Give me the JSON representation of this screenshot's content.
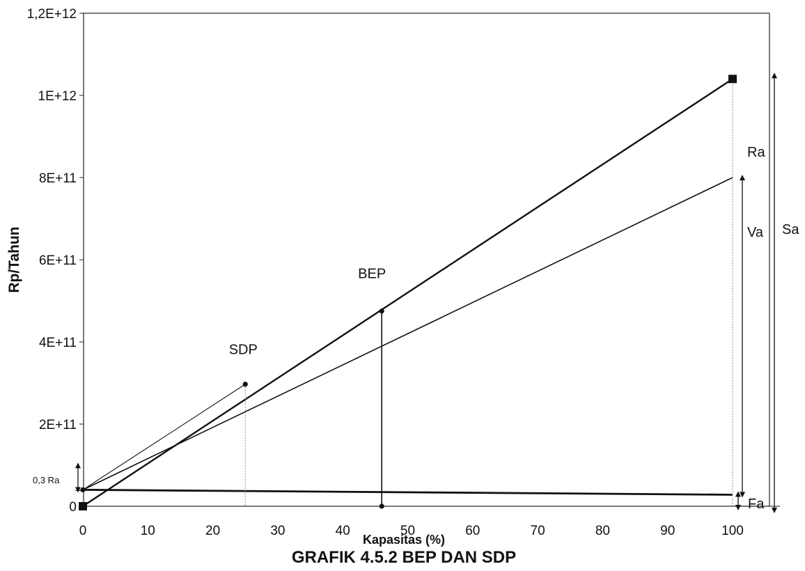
{
  "chart_data": {
    "type": "line",
    "title": "GRAFIK 4.5.2 BEP DAN SDP",
    "xlabel": "Kapasitas (%)",
    "ylabel": "Rp/Tahun",
    "xlim": [
      0,
      100
    ],
    "ylim": [
      0,
      1200000000000
    ],
    "x_ticks": [
      0,
      10,
      20,
      30,
      40,
      50,
      60,
      70,
      80,
      90,
      100
    ],
    "x_tick_labels": [
      "0",
      "10",
      "20",
      "30",
      "40",
      "50",
      "60",
      "70",
      "80",
      "90",
      "100"
    ],
    "y_ticks": [
      0,
      200000000000,
      400000000000,
      600000000000,
      800000000000,
      1000000000000,
      1200000000000
    ],
    "y_tick_labels": [
      "0",
      "2E+11",
      "4E+11",
      "6E+11",
      "8E+11",
      "1E+12",
      "1,2E+12"
    ],
    "grid": false,
    "series": [
      {
        "key": "sa",
        "x": [
          0,
          100
        ],
        "y": [
          0,
          1040000000000
        ]
      },
      {
        "key": "va",
        "x": [
          0,
          100
        ],
        "y": [
          40000000000,
          800000000000
        ]
      },
      {
        "key": "fa",
        "x": [
          0,
          100
        ],
        "y": [
          40000000000,
          28000000000
        ]
      },
      {
        "key": "sdp_line",
        "x": [
          0,
          25
        ],
        "y": [
          40000000000,
          297000000000
        ]
      }
    ],
    "points": [
      {
        "key": "sa_start",
        "x": 0,
        "y": 0,
        "marker": "square"
      },
      {
        "key": "sa_end",
        "x": 100,
        "y": 1040000000000,
        "marker": "square"
      },
      {
        "key": "fa_start",
        "x": 0,
        "y": 40000000000,
        "marker": "circle"
      },
      {
        "key": "sdp_point",
        "x": 25,
        "y": 297000000000,
        "marker": "circle"
      },
      {
        "key": "bep_point",
        "x": 46,
        "y": 475000000000,
        "marker": "circle"
      },
      {
        "key": "bep_base",
        "x": 46,
        "y": 0,
        "marker": "circle"
      }
    ],
    "annotations": [
      {
        "key": "sdp",
        "text": "SDP",
        "x": 25,
        "y": 370000000000
      },
      {
        "key": "bep",
        "text": "BEP",
        "x": 44,
        "y": 555000000000
      },
      {
        "key": "ra",
        "text": "Ra"
      },
      {
        "key": "va",
        "text": "Va"
      },
      {
        "key": "sa",
        "text": "Sa"
      },
      {
        "key": "fa",
        "text": "Fa"
      },
      {
        "key": "ra03",
        "text": "0,3 Ra"
      }
    ]
  }
}
